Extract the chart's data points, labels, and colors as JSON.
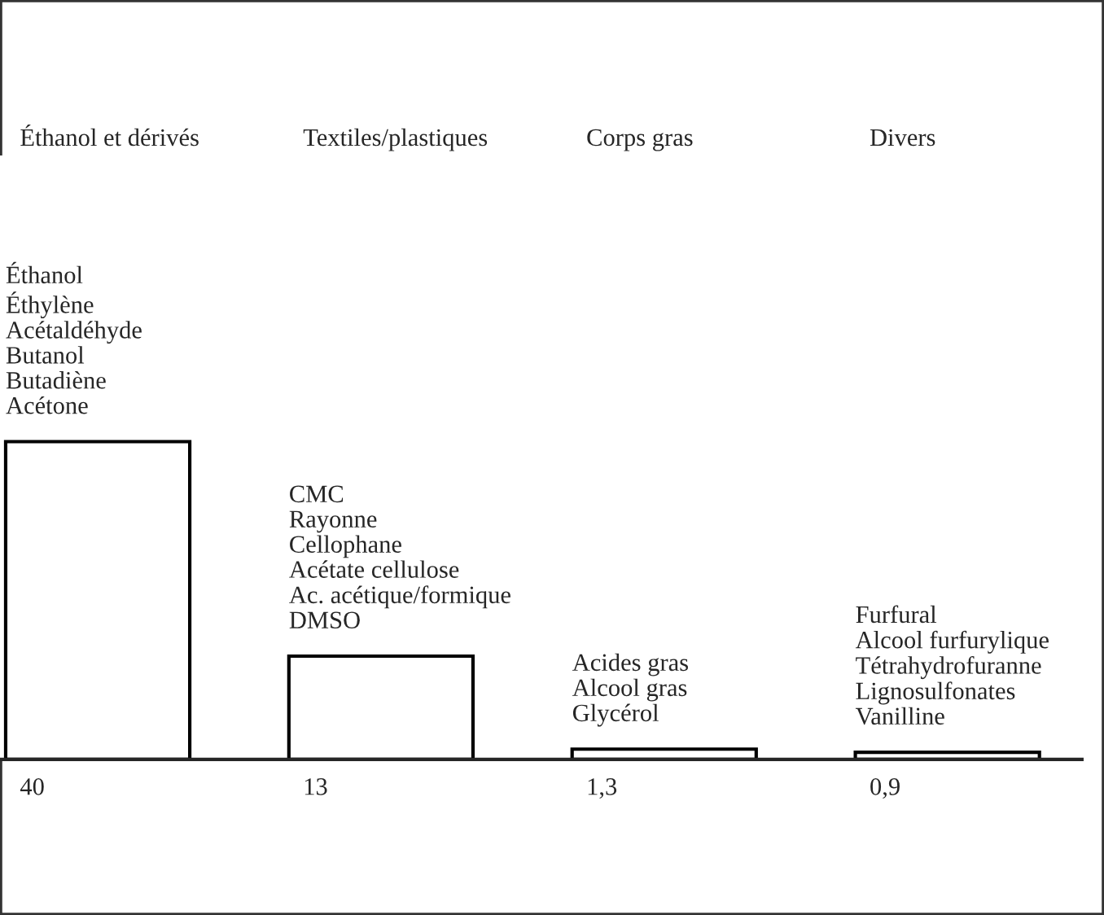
{
  "chart_data": {
    "type": "bar",
    "categories": [
      "Éthanol et dérivés",
      "Textiles/plastiques",
      "Corps gras",
      "Divers"
    ],
    "values": [
      40,
      13,
      1.3,
      0.9
    ],
    "value_labels": [
      "40",
      "13",
      "1,3",
      "0,9"
    ],
    "color": "#ffffff",
    "annotations": [
      {
        "text": "Éthanol\nÉthylène\nAcétaldéhyde\nButanol\nButadiène\nAcétone",
        "x": "Éthanol et dérivés",
        "y": 40
      },
      {
        "text": "CMC\nRayonne\nCellophane\nAcétate cellulose\nAc. acétique/formique\nDMSO",
        "x": "Textiles/plastiques",
        "y": 13
      },
      {
        "text": "Acides gras\nAlcool gras\nGlycérol",
        "x": "Corps gras",
        "y": 1.3
      },
      {
        "text": "Furfural\nAlcool furfurylique\nTétrahydrofuranne\nLignosulfonates\nVanilline",
        "x": "Divers",
        "y": 0.9
      }
    ],
    "grid": false,
    "legend": false
  }
}
